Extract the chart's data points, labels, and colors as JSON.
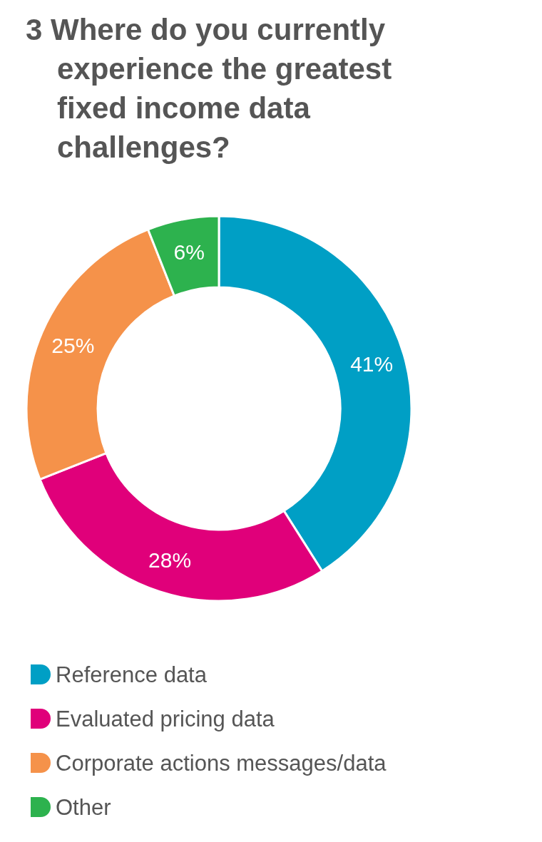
{
  "chart_data": {
    "type": "donut",
    "title": "3 Where do you currently experience the greatest fixed income data challenges?",
    "categories": [
      "Reference data",
      "Evaluated pricing data",
      "Corporate actions messages/data",
      "Other"
    ],
    "values": [
      41,
      28,
      25,
      6
    ],
    "colors": [
      "#009fc5",
      "#e0007a",
      "#f5924a",
      "#2db24e"
    ],
    "value_labels": [
      "41%",
      "28%",
      "25%",
      "6%"
    ],
    "legend": "bottom"
  }
}
